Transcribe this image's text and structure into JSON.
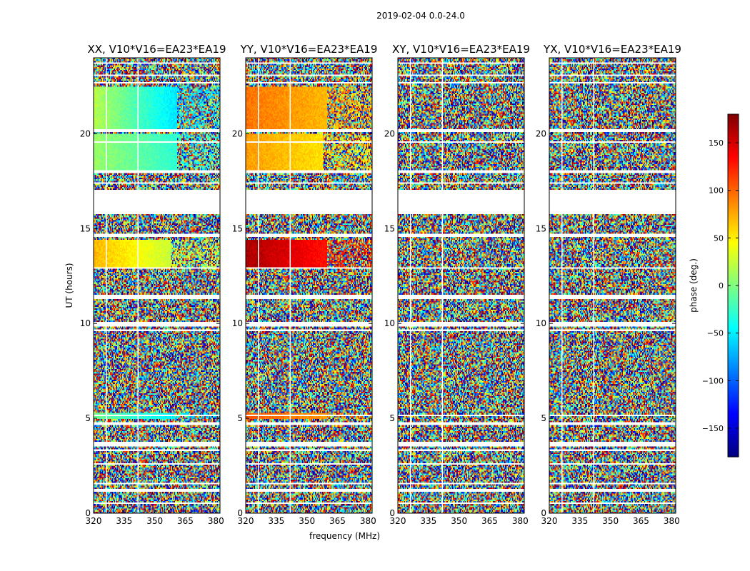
{
  "figure_title": "2019-02-04 0.0-24.0",
  "colorbar": {
    "label": "phase (deg.)",
    "vmin": -180,
    "vmax": 180,
    "ticks": [
      -150,
      -100,
      -50,
      0,
      50,
      100,
      150
    ],
    "tick_labels": [
      "−150",
      "−100",
      "−50",
      "0",
      "50",
      "100",
      "150"
    ],
    "colormap": "jet"
  },
  "chart_data": [
    {
      "type": "heatmap",
      "title": "XX, V10*V16=EA23*EA19",
      "xlabel": "",
      "ylabel": "UT (hours)",
      "xlim": [
        320,
        382
      ],
      "ylim": [
        0,
        24
      ],
      "xticks": [
        320,
        335,
        350,
        365,
        380
      ],
      "yticks": [
        0,
        5,
        10,
        15,
        20
      ],
      "coherent_regions": [
        {
          "utStart": 20.2,
          "utEnd": 22.5,
          "freqEnd": 361,
          "phaseStart": 20,
          "phaseEnd": -55
        },
        {
          "utStart": 18.0,
          "utEnd": 20.0,
          "freqEnd": 361,
          "phaseStart": 10,
          "phaseEnd": -30
        },
        {
          "utStart": 12.9,
          "utEnd": 14.4,
          "freqEnd": 358,
          "phaseStart": 70,
          "phaseEnd": 25
        },
        {
          "utStart": 4.95,
          "utEnd": 5.3,
          "freqEnd": 360,
          "phaseStart": -5,
          "phaseEnd": -50
        }
      ]
    },
    {
      "type": "heatmap",
      "title": "YY, V10*V16=EA23*EA19",
      "xlabel": "frequency (MHz)",
      "ylabel": "",
      "xlim": [
        320,
        382
      ],
      "ylim": [
        0,
        24
      ],
      "xticks": [
        320,
        335,
        350,
        365,
        380
      ],
      "yticks": [
        0,
        5,
        10,
        15,
        20
      ],
      "coherent_regions": [
        {
          "utStart": 20.2,
          "utEnd": 22.5,
          "freqEnd": 360,
          "phaseStart": 95,
          "phaseEnd": 70
        },
        {
          "utStart": 18.0,
          "utEnd": 20.0,
          "freqEnd": 358,
          "phaseStart": 80,
          "phaseEnd": 55
        },
        {
          "utStart": 12.9,
          "utEnd": 14.4,
          "freqEnd": 360,
          "phaseStart": 165,
          "phaseEnd": 130
        },
        {
          "utStart": 4.95,
          "utEnd": 5.3,
          "freqEnd": 360,
          "phaseStart": 105,
          "phaseEnd": 80
        }
      ]
    },
    {
      "type": "heatmap",
      "title": "XY, V10*V16=EA23*EA19",
      "xlabel": "",
      "ylabel": "",
      "xlim": [
        320,
        382
      ],
      "ylim": [
        0,
        24
      ],
      "xticks": [
        320,
        335,
        350,
        365,
        380
      ],
      "yticks": [
        0,
        5,
        10,
        15,
        20
      ],
      "coherent_regions": []
    },
    {
      "type": "heatmap",
      "title": "YX, V10*V16=EA23*EA19",
      "xlabel": "",
      "ylabel": "",
      "xlim": [
        320,
        382
      ],
      "ylim": [
        0,
        24
      ],
      "xticks": [
        320,
        335,
        350,
        365,
        380
      ],
      "yticks": [
        0,
        5,
        10,
        15,
        20
      ],
      "coherent_regions": []
    }
  ],
  "flagged_ut_ranges": [
    [
      23.65,
      23.72
    ],
    [
      23.05,
      23.1
    ],
    [
      22.62,
      22.72
    ],
    [
      22.45,
      22.5
    ],
    [
      20.08,
      20.2
    ],
    [
      19.55,
      19.58
    ],
    [
      17.9,
      18.1
    ],
    [
      17.35,
      17.45
    ],
    [
      15.75,
      17.05
    ],
    [
      14.6,
      14.7
    ],
    [
      12.85,
      12.92
    ],
    [
      11.3,
      11.48
    ],
    [
      9.85,
      10.05
    ],
    [
      9.6,
      9.66
    ],
    [
      5.15,
      5.22
    ],
    [
      4.62,
      4.8
    ],
    [
      3.55,
      3.72
    ],
    [
      3.3,
      3.36
    ],
    [
      2.55,
      2.6
    ],
    [
      1.5,
      1.6
    ],
    [
      1.15,
      1.25
    ],
    [
      0.45,
      0.52
    ]
  ],
  "flagged_channel_ranges": [
    [
      326.2,
      326.5
    ],
    [
      341.7,
      341.95
    ],
    [
      356.9,
      357.2
    ]
  ]
}
